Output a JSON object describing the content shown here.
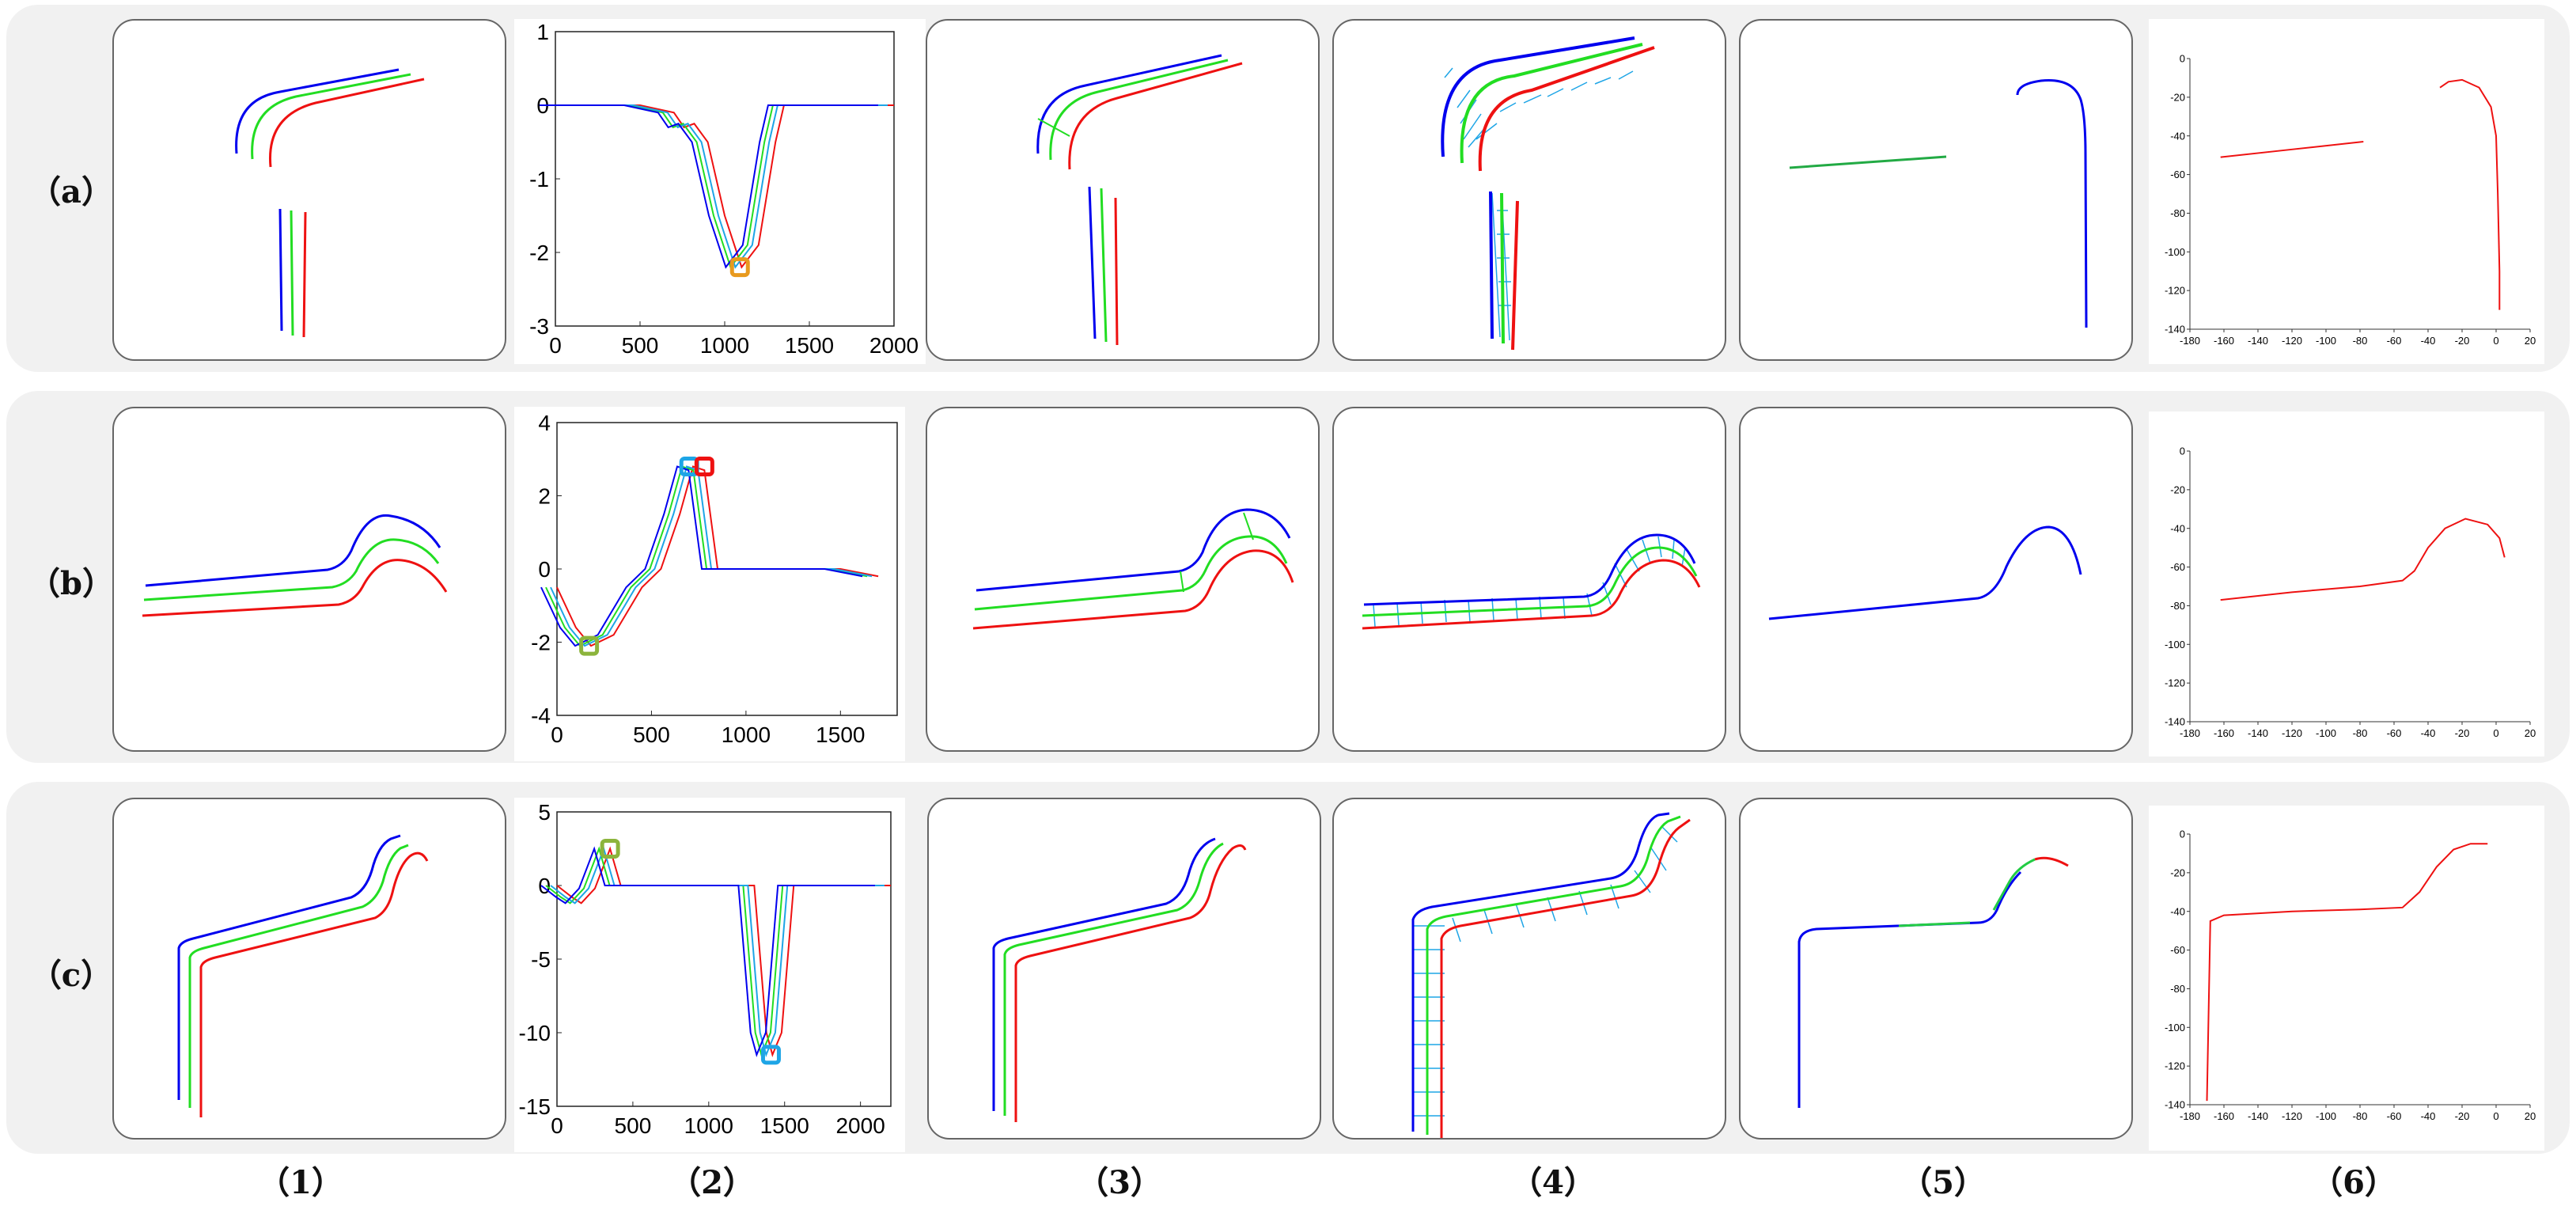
{
  "colors": {
    "blue": "#0000ee",
    "green": "#22dd22",
    "red": "#ee1111",
    "cyan": "#1ea5e6",
    "orange": "#e89a1e",
    "olive": "#8cb43c",
    "purple": "#9b3fa8"
  },
  "row_labels": [
    "（a）",
    "（b）",
    "（c）"
  ],
  "col_labels": [
    "（1）",
    "（2）",
    "（3）",
    "（4）",
    "（5）",
    "（6）"
  ],
  "chart_data": [
    {
      "type": "line",
      "row": "a",
      "x": [
        0,
        500,
        700,
        760,
        820,
        900,
        1000,
        1100,
        1200,
        1300,
        1350,
        2000
      ],
      "series": [
        {
          "values": [
            0,
            0,
            -0.1,
            -0.3,
            -0.25,
            -0.5,
            -1.5,
            -2.2,
            -1.9,
            -0.5,
            0,
            0
          ]
        }
      ],
      "xlim": [
        0,
        2000
      ],
      "ylim": [
        -3,
        1
      ],
      "xticks": [
        "0",
        "500",
        "1000",
        "1500",
        "2000"
      ],
      "yticks": [
        "1",
        "0",
        "-1",
        "-2",
        "-3"
      ],
      "markers": [
        {
          "x": 1090,
          "y": -2.2,
          "color": "orange"
        }
      ]
    },
    {
      "type": "line",
      "row": "b",
      "x": [
        0,
        100,
        180,
        300,
        450,
        550,
        650,
        720,
        780,
        850,
        1000,
        1500,
        1700
      ],
      "series": [
        {
          "values": [
            -0.5,
            -1.6,
            -2.1,
            -1.8,
            -0.5,
            0,
            1.5,
            2.8,
            2.7,
            0,
            0,
            0,
            -0.2
          ]
        }
      ],
      "xlim": [
        0,
        1800
      ],
      "ylim": [
        -4,
        4
      ],
      "xticks": [
        "0",
        "500",
        "1000",
        "1500"
      ],
      "yticks": [
        "4",
        "2",
        "0",
        "-2",
        "-4"
      ],
      "markers": [
        {
          "x": 170,
          "y": -2.1,
          "color": "olive"
        },
        {
          "x": 700,
          "y": 2.8,
          "color": "cyan"
        },
        {
          "x": 780,
          "y": 2.8,
          "color": "red"
        }
      ]
    },
    {
      "type": "line",
      "row": "c",
      "x": [
        0,
        100,
        160,
        250,
        350,
        420,
        500,
        1300,
        1380,
        1420,
        1480,
        1560,
        2200
      ],
      "series": [
        {
          "values": [
            0,
            -0.8,
            -1.2,
            -0.2,
            2.5,
            0,
            0,
            0,
            -10,
            -11.5,
            -10,
            0,
            0
          ]
        }
      ],
      "xlim": [
        0,
        2200
      ],
      "ylim": [
        -15,
        5
      ],
      "xticks": [
        "0",
        "500",
        "1000",
        "1500",
        "2000"
      ],
      "yticks": [
        "5",
        "0",
        "-5",
        "-10",
        "-15"
      ],
      "markers": [
        {
          "x": 350,
          "y": 2.5,
          "color": "olive"
        },
        {
          "x": 1410,
          "y": -11.5,
          "color": "cyan"
        }
      ]
    },
    {
      "type": "line",
      "row": "a",
      "col": 6,
      "xlim": [
        -180,
        20
      ],
      "ylim": [
        -140,
        0
      ],
      "xticks": [
        "-180",
        "-160",
        "-140",
        "-120",
        "-100",
        "-80",
        "-60",
        "-40",
        "-20",
        "0",
        "20"
      ],
      "yticks": [
        "0",
        "-20",
        "-40",
        "-60",
        "-80",
        "-100",
        "-120",
        "-140"
      ]
    },
    {
      "type": "line",
      "row": "b",
      "col": 6,
      "xlim": [
        -180,
        20
      ],
      "ylim": [
        -140,
        0
      ],
      "xticks": [
        "-180",
        "-160",
        "-140",
        "-120",
        "-100",
        "-80",
        "-60",
        "-40",
        "-20",
        "0",
        "20"
      ],
      "yticks": [
        "0",
        "-20",
        "-40",
        "-60",
        "-80",
        "-100",
        "-120",
        "-140"
      ]
    },
    {
      "type": "line",
      "row": "c",
      "col": 6,
      "xlim": [
        -180,
        20
      ],
      "ylim": [
        -140,
        0
      ],
      "xticks": [
        "-180",
        "-160",
        "-140",
        "-120",
        "-100",
        "-80",
        "-60",
        "-40",
        "-20",
        "0",
        "20"
      ],
      "yticks": [
        "0",
        "-20",
        "-40",
        "-60",
        "-80",
        "-100",
        "-120",
        "-140"
      ]
    }
  ]
}
